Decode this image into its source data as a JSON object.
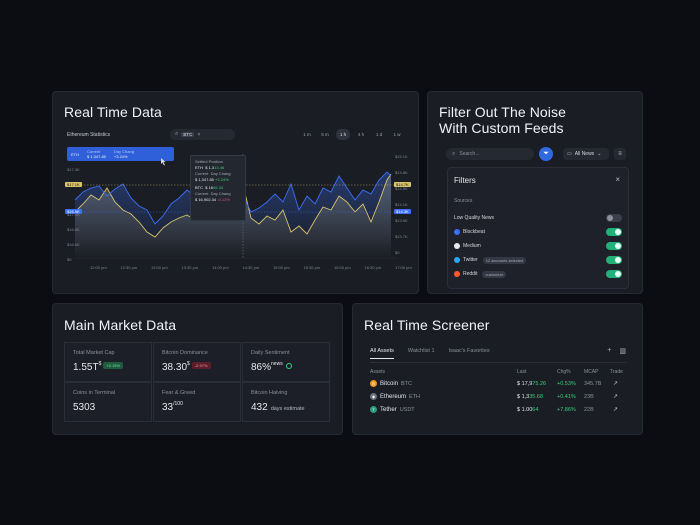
{
  "realtime": {
    "title": "Real Time Data",
    "stat_label": "Ethereum Statistics",
    "search_tag": "BTC",
    "timeframes": [
      "1 m",
      "5 m",
      "1 h",
      "4 h",
      "1 d",
      "1 w"
    ],
    "active_timeframe": "1 h",
    "eth_badge": {
      "symbol": "ETH",
      "current_label": "Current",
      "current_value": "$ 1,347.85",
      "change_label": "Day Chang",
      "change_value": "+3.24%"
    },
    "tooltip": {
      "title": "Settled Position",
      "eth_label": "ETH",
      "eth_value": "$ 1,3",
      "eth_value_b": "13.46",
      "eth_sub1": "Current",
      "eth_sub2": "Day Chang",
      "eth_sub_val": "$ 1,347.85",
      "eth_sub_chg": "+3.24%",
      "btc_label": "BTC",
      "btc_value": "$ 16",
      "btc_value_b": "06.34",
      "btc_sub1": "Current",
      "btc_sub2": "Day Chang",
      "btc_sub_val": "$ 16,902.34",
      "btc_sub_chg": "-0.12%"
    },
    "y_left": [
      "",
      "$17.4K",
      "",
      "",
      "$17.0K",
      "$16.8K",
      "$16.6K",
      "$0"
    ],
    "y_right": [
      "$15.1K",
      "$14.8K",
      "$14.5K",
      "$14.1K",
      "$13.9K",
      "$13.7K",
      "$0"
    ],
    "x_labels": [
      "12:00 pm",
      "12:30 pm",
      "13:00 pm",
      "13:30 pm",
      "14:00 pm",
      "14:30 pm",
      "15:00 pm",
      "15:30 pm",
      "16:00 pm",
      "16:30 pm",
      "17:00 pm"
    ],
    "marker_yellow_left": "$17.1K",
    "marker_blue_left": "$16.9K",
    "marker_yellow_right": "$14.7K",
    "marker_blue_right": "$14.3K",
    "colors": {
      "eth": "#3b6ff5",
      "btc": "#d7c46a"
    }
  },
  "filter": {
    "title_line1": "Filter Out The Noise",
    "title_line2": "With Custom Feeds",
    "search_placeholder": "Search...",
    "news_select": "All News",
    "panel_title": "Filters",
    "sources_label": "Sources",
    "rows": [
      {
        "label": "Low Quality News",
        "pill": "",
        "on": false,
        "icon": ""
      },
      {
        "label": "Blockbeat",
        "pill": "",
        "on": true,
        "icon": "blockbeat-icon",
        "color": "#3b6ff5"
      },
      {
        "label": "Medium",
        "pill": "",
        "on": true,
        "icon": "medium-icon",
        "color": "#e6e8ee"
      },
      {
        "label": "Twitter",
        "pill": "12 accounts selected",
        "on": true,
        "icon": "twitter-icon",
        "color": "#2ca6f0"
      },
      {
        "label": "Reddit",
        "pill": "customize",
        "on": true,
        "icon": "reddit-icon",
        "color": "#ff5a2a"
      }
    ]
  },
  "market": {
    "title": "Main Market Data",
    "tiles": [
      {
        "label": "Total Market Cap",
        "value": "1.55T",
        "sup": "$",
        "chip": "+2.15%",
        "chip_type": "g"
      },
      {
        "label": "Bitcoin Dominance",
        "value": "38.30",
        "sup": "$",
        "chip": "-2.97%",
        "chip_type": "r"
      },
      {
        "label": "Daily Sentiment",
        "value": "86%",
        "sup": "news",
        "chip": "",
        "chip_type": "smile"
      },
      {
        "label": "Coins in Terminal",
        "value": "5303",
        "sup": "",
        "chip": "",
        "chip_type": ""
      },
      {
        "label": "Fear & Greed",
        "value": "33",
        "sup": "/100",
        "chip": "",
        "chip_type": ""
      },
      {
        "label": "Bitcoin Halving",
        "value": "432",
        "sup": "",
        "chip": "",
        "chip_type": "",
        "days": "days estimate"
      }
    ]
  },
  "screener": {
    "title": "Real Time Screener",
    "tabs": [
      "All Assets",
      "Watchlist 1",
      "Isaac's Favorites"
    ],
    "headers": {
      "assets": "Assets",
      "last": "Last",
      "chg": "Chg%",
      "mcap": "MCAP",
      "trade": "Trade"
    },
    "rows": [
      {
        "name": "Bitcoin",
        "sym": "BTC",
        "last_a": "$ 17,9",
        "last_b": "75.26",
        "chg": "+0.53%",
        "mcap": "345.7B",
        "color": "#f7931a",
        "glyph": "₿"
      },
      {
        "name": "Ethereum",
        "sym": "ETH",
        "last_a": "$ 1,3",
        "last_b": "35.68",
        "chg": "+0.41%",
        "mcap": "23B",
        "color": "#6b7280",
        "glyph": "◆"
      },
      {
        "name": "Tether",
        "sym": "USDT",
        "last_a": "$ 1.00",
        "last_b": "64",
        "chg": "+7.86%",
        "mcap": "22B",
        "color": "#26a17b",
        "glyph": "T"
      }
    ]
  }
}
